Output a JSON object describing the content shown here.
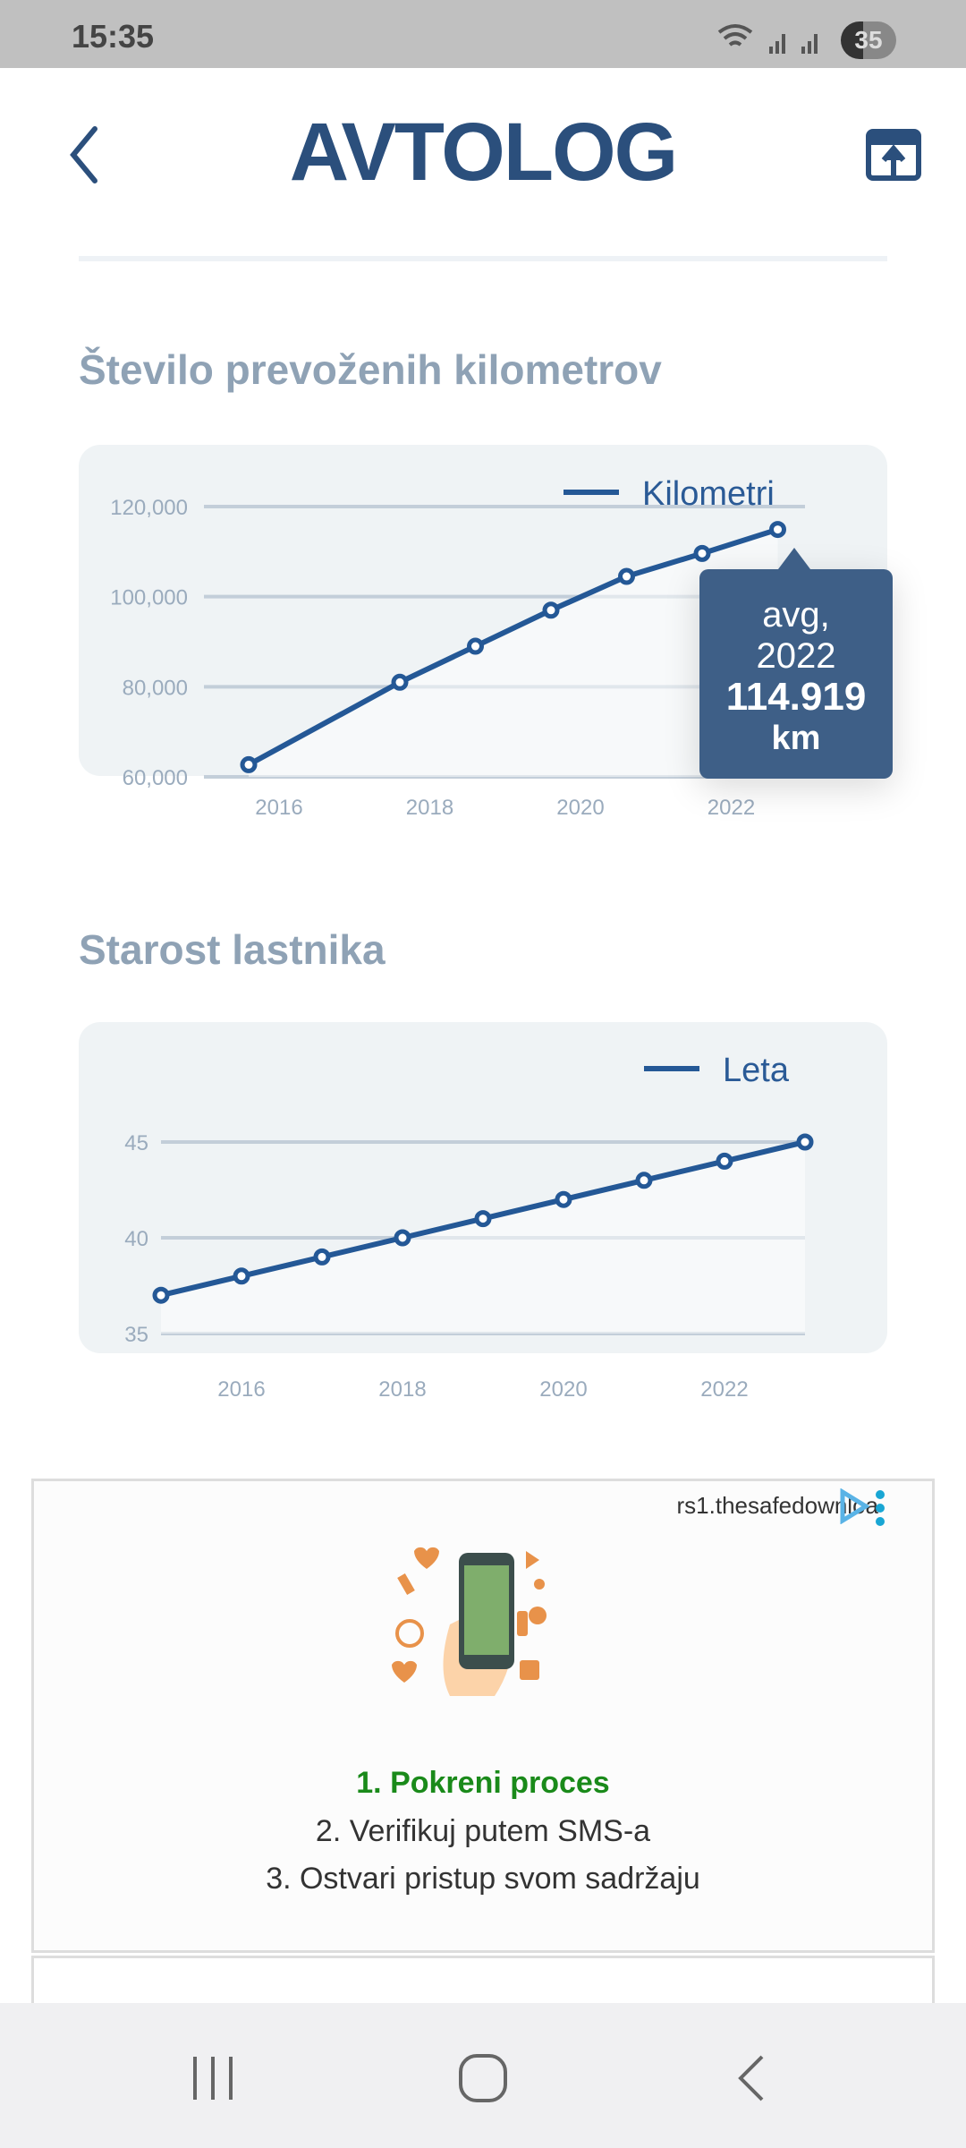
{
  "status_bar": {
    "time": "15:35",
    "battery": "35"
  },
  "header": {
    "logo_bold": "AVTO",
    "logo_light": "LOG"
  },
  "sections": [
    {
      "title": "Število prevoženih kilometrov"
    },
    {
      "title": "Starost lastnika"
    }
  ],
  "tooltip": {
    "line1": "avg,",
    "line2": "2022",
    "value": "114.919",
    "unit": "km"
  },
  "chart_data": [
    {
      "type": "line",
      "title": "Število prevoženih kilometrov",
      "legend": "Kilometri",
      "legend_placement": "top-right",
      "x": [
        2015,
        2017,
        2018,
        2019,
        2020,
        2021,
        2022
      ],
      "values": [
        62700,
        81000,
        89000,
        97000,
        104500,
        109600,
        114919
      ],
      "ylim": [
        60000,
        120000
      ],
      "yticks": [
        "60,000",
        "80,000",
        "100,000",
        "120,000"
      ],
      "ytick_values": [
        60000,
        80000,
        100000,
        120000
      ],
      "xticks": [
        "2016",
        "2018",
        "2020",
        "2022"
      ],
      "color": "#245896",
      "grid": true
    },
    {
      "type": "line",
      "title": "Starost lastnika",
      "legend": "Leta",
      "legend_placement": "top-right",
      "x": [
        2015,
        2016,
        2017,
        2018,
        2019,
        2020,
        2021,
        2022,
        2023
      ],
      "values": [
        37,
        38,
        39,
        40,
        41,
        42,
        43,
        44,
        45
      ],
      "ylim": [
        35,
        45
      ],
      "yticks": [
        "35",
        "40",
        "45"
      ],
      "ytick_values": [
        35,
        40,
        45
      ],
      "xticks": [
        "2016",
        "2018",
        "2020",
        "2022"
      ],
      "color": "#245896",
      "grid": true
    }
  ],
  "ad": {
    "url": "rs1.thesafedownloa",
    "step1": "1. Pokreni proces",
    "step2": "2. Verifikuj putem SMS-a",
    "step3": "3. Ostvari pristup svom sadržaju",
    "step1_color": "#1a8a1a"
  }
}
